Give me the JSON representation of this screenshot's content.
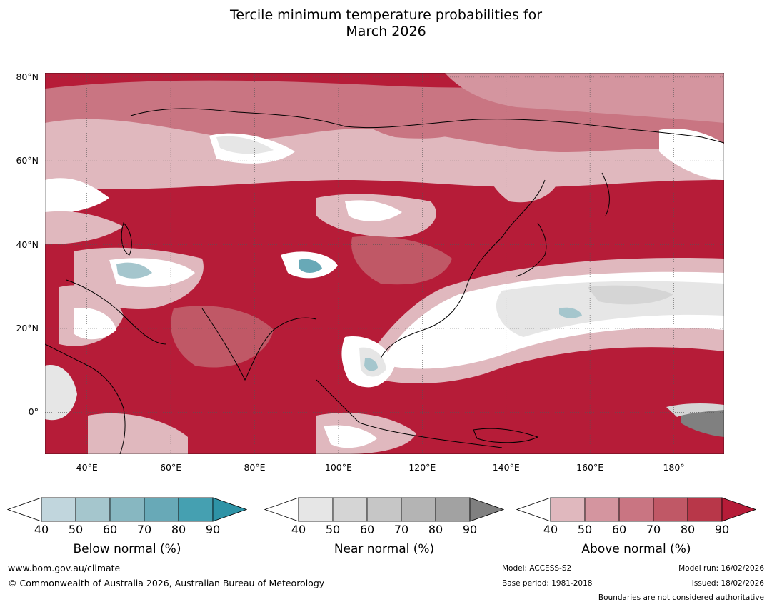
{
  "title_line1": "Tercile minimum temperature probabilities for",
  "title_line2": "March 2026",
  "map": {
    "lon_range": [
      30,
      192
    ],
    "lat_range": [
      -10,
      81
    ],
    "lat_labels": [
      {
        "value": 80,
        "text": "80°N"
      },
      {
        "value": 60,
        "text": "60°N"
      },
      {
        "value": 40,
        "text": "40°N"
      },
      {
        "value": 20,
        "text": "20°N"
      },
      {
        "value": 0,
        "text": "0°"
      }
    ],
    "lon_labels": [
      {
        "value": 40,
        "text": "40°E"
      },
      {
        "value": 60,
        "text": "60°E"
      },
      {
        "value": 80,
        "text": "80°E"
      },
      {
        "value": 100,
        "text": "100°E"
      },
      {
        "value": 120,
        "text": "120°E"
      },
      {
        "value": 140,
        "text": "140°E"
      },
      {
        "value": 160,
        "text": "160°E"
      },
      {
        "value": 180,
        "text": "180°"
      }
    ],
    "base_color": "#b61c38",
    "grid_color": "#555555"
  },
  "colorbars": [
    {
      "title": "Below normal (%)",
      "ticks": [
        "40",
        "50",
        "60",
        "70",
        "80",
        "90"
      ],
      "colors": [
        "#ffffff",
        "#c1d6dd",
        "#a5c6cd",
        "#87b7c1",
        "#68a9b7",
        "#45a0b1",
        "#2e93a6"
      ]
    },
    {
      "title": "Near normal (%)",
      "ticks": [
        "40",
        "50",
        "60",
        "70",
        "80",
        "90"
      ],
      "colors": [
        "#ffffff",
        "#e6e6e6",
        "#d5d5d5",
        "#c6c6c6",
        "#b4b4b4",
        "#a2a2a2",
        "#808080"
      ]
    },
    {
      "title": "Above normal (%)",
      "ticks": [
        "40",
        "50",
        "60",
        "70",
        "80",
        "90"
      ],
      "colors": [
        "#ffffff",
        "#e0b8be",
        "#d4959f",
        "#c97582",
        "#c05866",
        "#b83749",
        "#b61c38"
      ]
    }
  ],
  "footer": {
    "website": "www.bom.gov.au/climate",
    "copyright": "© Commonwealth of Australia 2026, Australian Bureau of Meteorology",
    "model": "Model: ACCESS-S2",
    "base_period": "Base period: 1981-2018",
    "model_run": "Model run: 16/02/2026",
    "issued": "Issued: 18/02/2026",
    "disclaimer": "Boundaries are not considered authoritative"
  }
}
